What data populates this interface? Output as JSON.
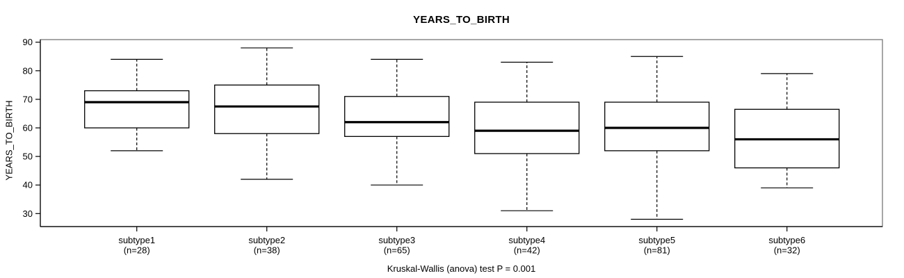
{
  "figure": {
    "title": "YEARS_TO_BIRTH",
    "y_axis_label": "YEARS_TO_BIRTH",
    "caption": "Kruskal-Wallis (anova) test P = 0.001"
  },
  "colors": {
    "line": "#000000",
    "frame": "#808080",
    "box_fill": "#ffffff",
    "background": "#ffffff"
  },
  "chart_data": {
    "type": "box",
    "title": "YEARS_TO_BIRTH",
    "xlabel": "",
    "ylabel": "YEARS_TO_BIRTH",
    "caption": "Kruskal-Wallis (anova) test P = 0.001",
    "grid": false,
    "legend": "none",
    "ylim": [
      25.5,
      90.5
    ],
    "y_ticks": [
      30,
      40,
      50,
      60,
      70,
      80,
      90
    ],
    "categories": [
      "subtype1",
      "subtype2",
      "subtype3",
      "subtype4",
      "subtype5",
      "subtype6"
    ],
    "sample_sizes": [
      28,
      38,
      65,
      42,
      81,
      32
    ],
    "groups": [
      {
        "label": "subtype1",
        "n_label": "(n=28)",
        "whisker_low": 52,
        "q1": 60,
        "median": 69,
        "q3": 73,
        "whisker_high": 84
      },
      {
        "label": "subtype2",
        "n_label": "(n=38)",
        "whisker_low": 42,
        "q1": 58,
        "median": 67.5,
        "q3": 75,
        "whisker_high": 88
      },
      {
        "label": "subtype3",
        "n_label": "(n=65)",
        "whisker_low": 40,
        "q1": 57,
        "median": 62,
        "q3": 71,
        "whisker_high": 84
      },
      {
        "label": "subtype4",
        "n_label": "(n=42)",
        "whisker_low": 31,
        "q1": 51,
        "median": 59,
        "q3": 69,
        "whisker_high": 83
      },
      {
        "label": "subtype5",
        "n_label": "(n=81)",
        "whisker_low": 28,
        "q1": 52,
        "median": 60,
        "q3": 69,
        "whisker_high": 85
      },
      {
        "label": "subtype6",
        "n_label": "(n=32)",
        "whisker_low": 39,
        "q1": 46,
        "median": 56,
        "q3": 66.5,
        "whisker_high": 79
      }
    ]
  }
}
